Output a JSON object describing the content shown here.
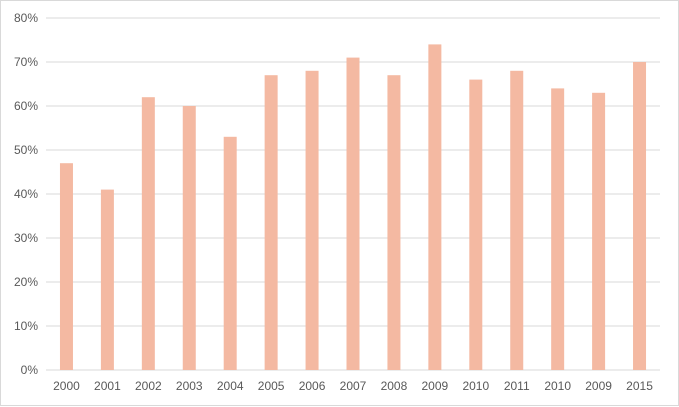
{
  "chart_data": {
    "type": "bar",
    "categories": [
      "2000",
      "2001",
      "2002",
      "2003",
      "2004",
      "2005",
      "2006",
      "2007",
      "2008",
      "2009",
      "2010",
      "2011",
      "2010",
      "2009",
      "2015"
    ],
    "values": [
      47,
      41,
      62,
      60,
      53,
      67,
      68,
      71,
      67,
      74,
      66,
      68,
      64,
      63,
      70
    ],
    "y_ticks": [
      "0%",
      "10%",
      "20%",
      "30%",
      "40%",
      "50%",
      "60%",
      "70%",
      "80%"
    ],
    "ylim": [
      0,
      80
    ],
    "y_unit": "%",
    "grid": true,
    "legend": "none",
    "bar_color": "#f4b9a2",
    "grid_color": "#d9d9d9"
  }
}
